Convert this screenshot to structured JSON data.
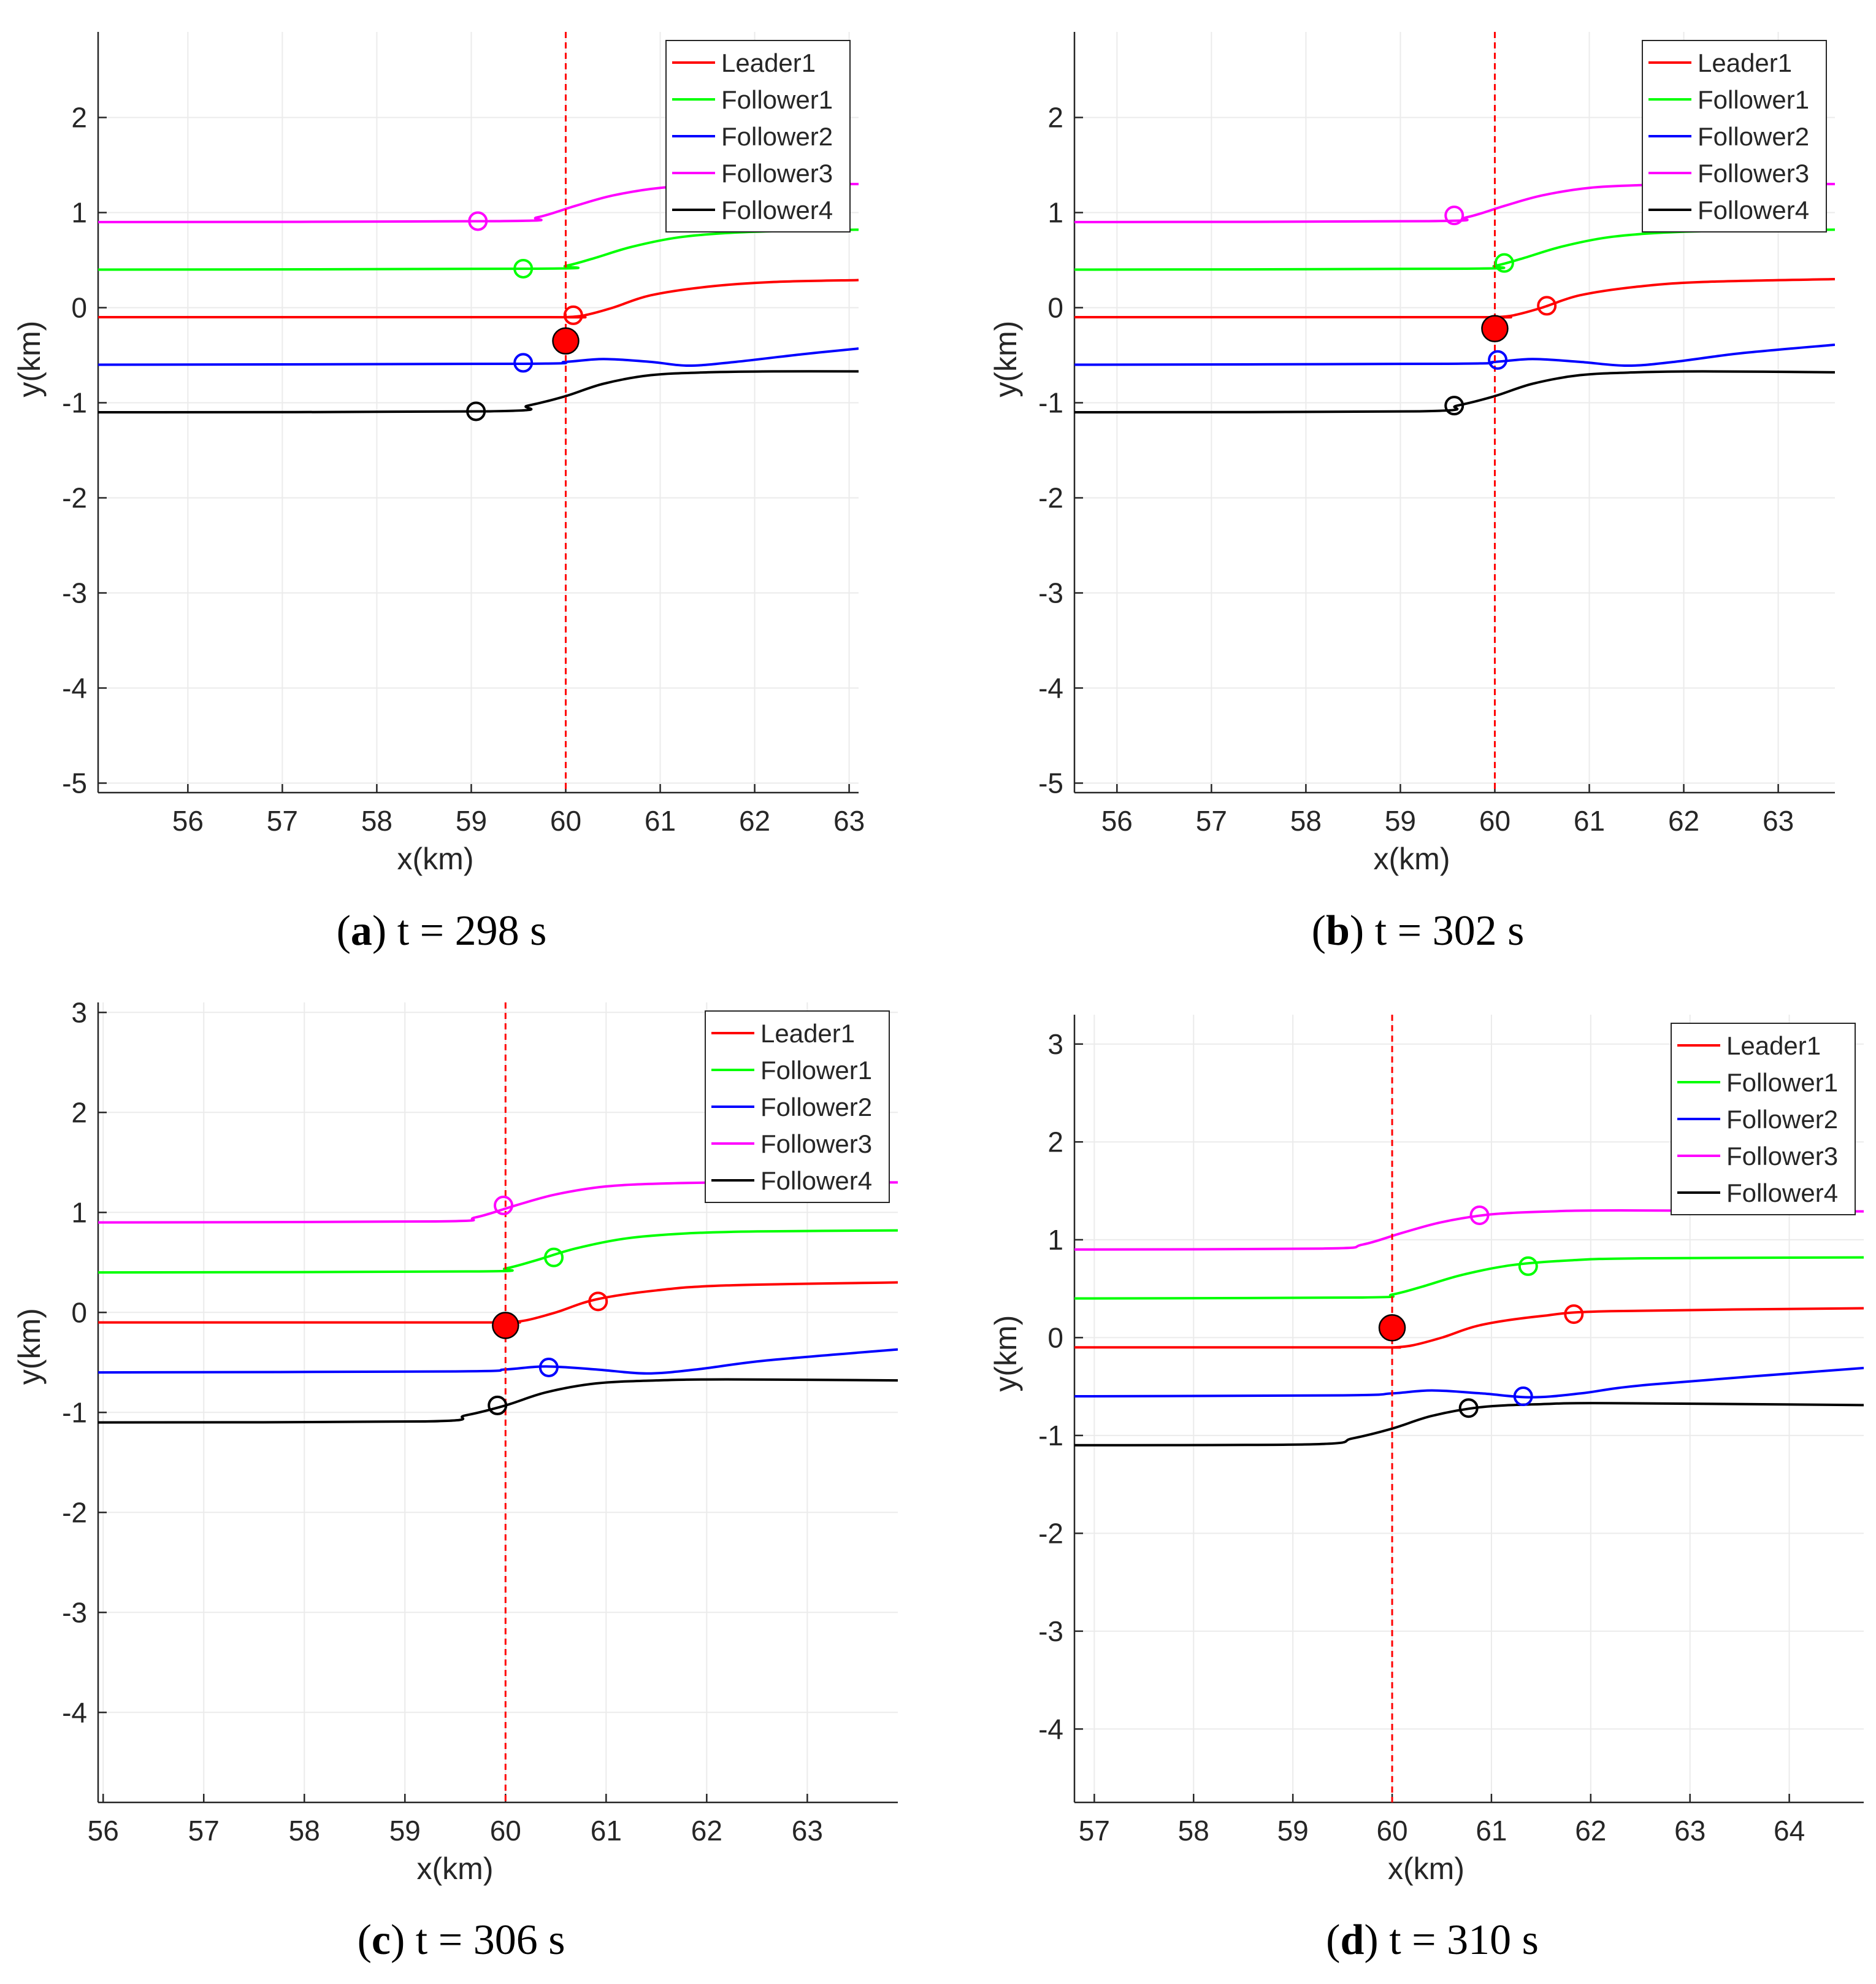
{
  "figure": {
    "legend_entries": [
      "Leader1",
      "Follower1",
      "Follower2",
      "Follower3",
      "Follower4"
    ],
    "series_colors": {
      "Leader1": "#ff0000",
      "Follower1": "#00ff00",
      "Follower2": "#0000ff",
      "Follower3": "#ff00ff",
      "Follower4": "#000000"
    },
    "reference_line": {
      "x": 60,
      "color": "#ff0000"
    }
  },
  "chart_data": [
    {
      "type": "line",
      "panel": "a",
      "caption_label": "a",
      "caption_text": " t = 298 s",
      "xlabel": "x(km)",
      "ylabel": "y(km)",
      "xlim": [
        55.05,
        63.1
      ],
      "ylim": [
        -5.1,
        2.9
      ],
      "xticks": [
        56,
        57,
        58,
        59,
        60,
        61,
        62,
        63
      ],
      "yticks": [
        -5,
        -4,
        -3,
        -2,
        -1,
        0,
        1,
        2
      ],
      "reference_x": 60,
      "series": [
        {
          "name": "Leader1",
          "color": "#ff0000",
          "x": [
            55.05,
            59.8,
            60.0,
            60.2,
            60.5,
            60.9,
            61.5,
            62.2,
            63.1
          ],
          "y": [
            -0.1,
            -0.1,
            -0.1,
            -0.08,
            0.0,
            0.13,
            0.22,
            0.27,
            0.29
          ],
          "marker": {
            "x": 60.08,
            "y": -0.08
          }
        },
        {
          "name": "Follower1",
          "color": "#00ff00",
          "x": [
            55.05,
            59.7,
            60.0,
            60.3,
            60.7,
            61.2,
            61.8,
            62.5,
            63.1
          ],
          "y": [
            0.4,
            0.41,
            0.44,
            0.52,
            0.64,
            0.74,
            0.79,
            0.81,
            0.82
          ],
          "marker": {
            "x": 59.55,
            "y": 0.41
          }
        },
        {
          "name": "Follower2",
          "color": "#0000ff",
          "x": [
            55.05,
            59.5,
            60.0,
            60.4,
            60.9,
            61.3,
            61.8,
            62.5,
            63.1
          ],
          "y": [
            -0.6,
            -0.59,
            -0.57,
            -0.54,
            -0.57,
            -0.61,
            -0.57,
            -0.49,
            -0.43
          ],
          "marker": {
            "x": 59.55,
            "y": -0.58
          }
        },
        {
          "name": "Follower3",
          "color": "#ff00ff",
          "x": [
            55.05,
            59.3,
            59.7,
            60.1,
            60.5,
            61.0,
            61.6,
            62.3,
            63.1
          ],
          "y": [
            0.9,
            0.91,
            0.95,
            1.07,
            1.18,
            1.26,
            1.29,
            1.3,
            1.3
          ],
          "marker": {
            "x": 59.07,
            "y": 0.91
          }
        },
        {
          "name": "Follower4",
          "color": "#000000",
          "x": [
            55.05,
            59.2,
            59.6,
            60.0,
            60.4,
            60.9,
            61.5,
            62.2,
            63.1
          ],
          "y": [
            -1.1,
            -1.09,
            -1.03,
            -0.93,
            -0.8,
            -0.71,
            -0.68,
            -0.67,
            -0.67
          ],
          "marker": {
            "x": 59.05,
            "y": -1.09
          }
        }
      ],
      "reference_marker": {
        "x": 60.0,
        "y": -0.35
      }
    },
    {
      "type": "line",
      "panel": "b",
      "caption_label": "b",
      "caption_text": " t = 302 s",
      "xlabel": "x(km)",
      "ylabel": "y(km)",
      "xlim": [
        55.55,
        63.6
      ],
      "ylim": [
        -5.1,
        2.9
      ],
      "xticks": [
        56,
        57,
        58,
        59,
        60,
        61,
        62,
        63
      ],
      "yticks": [
        -5,
        -4,
        -3,
        -2,
        -1,
        0,
        1,
        2
      ],
      "reference_x": 60,
      "series": [
        {
          "name": "Leader1",
          "color": "#ff0000",
          "x": [
            55.55,
            59.8,
            60.0,
            60.2,
            60.5,
            60.9,
            61.5,
            62.2,
            63.6
          ],
          "y": [
            -0.1,
            -0.1,
            -0.1,
            -0.08,
            0.0,
            0.13,
            0.22,
            0.27,
            0.3
          ],
          "marker": {
            "x": 60.55,
            "y": 0.02
          }
        },
        {
          "name": "Follower1",
          "color": "#00ff00",
          "x": [
            55.55,
            59.7,
            60.0,
            60.3,
            60.7,
            61.2,
            61.8,
            62.5,
            63.6
          ],
          "y": [
            0.4,
            0.41,
            0.44,
            0.52,
            0.64,
            0.74,
            0.79,
            0.81,
            0.82
          ],
          "marker": {
            "x": 60.1,
            "y": 0.47
          }
        },
        {
          "name": "Follower2",
          "color": "#0000ff",
          "x": [
            55.55,
            59.5,
            60.0,
            60.4,
            60.9,
            61.4,
            61.9,
            62.6,
            63.6
          ],
          "y": [
            -0.6,
            -0.59,
            -0.57,
            -0.54,
            -0.57,
            -0.61,
            -0.57,
            -0.48,
            -0.39
          ],
          "marker": {
            "x": 60.03,
            "y": -0.55
          }
        },
        {
          "name": "Follower3",
          "color": "#ff00ff",
          "x": [
            55.55,
            59.3,
            59.7,
            60.1,
            60.5,
            61.0,
            61.6,
            62.3,
            63.6
          ],
          "y": [
            0.9,
            0.91,
            0.95,
            1.07,
            1.18,
            1.26,
            1.29,
            1.3,
            1.3
          ],
          "marker": {
            "x": 59.57,
            "y": 0.97
          }
        },
        {
          "name": "Follower4",
          "color": "#000000",
          "x": [
            55.55,
            59.2,
            59.6,
            60.0,
            60.4,
            60.9,
            61.5,
            62.2,
            63.6
          ],
          "y": [
            -1.1,
            -1.09,
            -1.03,
            -0.93,
            -0.8,
            -0.71,
            -0.68,
            -0.67,
            -0.68
          ],
          "marker": {
            "x": 59.57,
            "y": -1.03
          }
        }
      ],
      "reference_marker": {
        "x": 60.0,
        "y": -0.22
      }
    },
    {
      "type": "line",
      "panel": "c",
      "caption_label": "c",
      "caption_text": " t = 306 s",
      "xlabel": "x(km)",
      "ylabel": "y(km)",
      "xlim": [
        55.95,
        63.9
      ],
      "ylim": [
        -4.9,
        3.1
      ],
      "xticks": [
        56,
        57,
        58,
        59,
        60,
        61,
        62,
        63
      ],
      "yticks": [
        -4,
        -3,
        -2,
        -1,
        0,
        1,
        2,
        3
      ],
      "reference_x": 60,
      "series": [
        {
          "name": "Leader1",
          "color": "#ff0000",
          "x": [
            55.95,
            59.8,
            60.0,
            60.2,
            60.5,
            60.9,
            61.5,
            62.2,
            63.9
          ],
          "y": [
            -0.1,
            -0.1,
            -0.1,
            -0.08,
            0.0,
            0.13,
            0.22,
            0.27,
            0.3
          ],
          "marker": {
            "x": 60.92,
            "y": 0.11
          }
        },
        {
          "name": "Follower1",
          "color": "#00ff00",
          "x": [
            55.95,
            59.7,
            60.0,
            60.3,
            60.7,
            61.2,
            61.8,
            62.5,
            63.9
          ],
          "y": [
            0.4,
            0.41,
            0.44,
            0.52,
            0.64,
            0.74,
            0.79,
            0.81,
            0.82
          ],
          "marker": {
            "x": 60.48,
            "y": 0.55
          }
        },
        {
          "name": "Follower2",
          "color": "#0000ff",
          "x": [
            55.95,
            59.5,
            60.0,
            60.4,
            60.9,
            61.4,
            61.9,
            62.6,
            63.9
          ],
          "y": [
            -0.6,
            -0.59,
            -0.57,
            -0.54,
            -0.57,
            -0.61,
            -0.57,
            -0.48,
            -0.37
          ],
          "marker": {
            "x": 60.43,
            "y": -0.55
          }
        },
        {
          "name": "Follower3",
          "color": "#ff00ff",
          "x": [
            55.95,
            59.3,
            59.7,
            60.1,
            60.5,
            61.0,
            61.6,
            62.3,
            63.9
          ],
          "y": [
            0.9,
            0.91,
            0.95,
            1.07,
            1.18,
            1.26,
            1.29,
            1.3,
            1.3
          ],
          "marker": {
            "x": 59.98,
            "y": 1.07
          }
        },
        {
          "name": "Follower4",
          "color": "#000000",
          "x": [
            55.95,
            59.2,
            59.6,
            60.0,
            60.4,
            60.9,
            61.5,
            62.2,
            63.9
          ],
          "y": [
            -1.1,
            -1.09,
            -1.03,
            -0.93,
            -0.8,
            -0.71,
            -0.68,
            -0.67,
            -0.68
          ],
          "marker": {
            "x": 59.92,
            "y": -0.93
          }
        }
      ],
      "reference_marker": {
        "x": 60.0,
        "y": -0.13
      }
    },
    {
      "type": "line",
      "panel": "d",
      "caption_label": "d",
      "caption_text": " t = 310 s",
      "xlabel": "x(km)",
      "ylabel": "y(km)",
      "xlim": [
        56.8,
        64.75
      ],
      "ylim": [
        -4.75,
        3.3
      ],
      "xticks": [
        57,
        58,
        59,
        60,
        61,
        62,
        63,
        64
      ],
      "yticks": [
        -4,
        -3,
        -2,
        -1,
        0,
        1,
        2,
        3
      ],
      "reference_x": 60,
      "series": [
        {
          "name": "Leader1",
          "color": "#ff0000",
          "x": [
            56.8,
            59.8,
            60.0,
            60.2,
            60.5,
            60.9,
            61.5,
            62.2,
            64.75
          ],
          "y": [
            -0.1,
            -0.1,
            -0.1,
            -0.08,
            0.0,
            0.13,
            0.22,
            0.27,
            0.3
          ],
          "marker": {
            "x": 61.83,
            "y": 0.24
          }
        },
        {
          "name": "Follower1",
          "color": "#00ff00",
          "x": [
            56.8,
            59.7,
            60.0,
            60.3,
            60.7,
            61.2,
            61.8,
            62.5,
            64.75
          ],
          "y": [
            0.4,
            0.41,
            0.44,
            0.52,
            0.64,
            0.74,
            0.79,
            0.81,
            0.82
          ],
          "marker": {
            "x": 61.37,
            "y": 0.73
          }
        },
        {
          "name": "Follower2",
          "color": "#0000ff",
          "x": [
            56.8,
            59.5,
            60.0,
            60.4,
            60.9,
            61.4,
            61.9,
            62.6,
            64.75
          ],
          "y": [
            -0.6,
            -0.59,
            -0.57,
            -0.54,
            -0.57,
            -0.61,
            -0.57,
            -0.48,
            -0.31
          ],
          "marker": {
            "x": 61.32,
            "y": -0.6
          }
        },
        {
          "name": "Follower3",
          "color": "#ff00ff",
          "x": [
            56.8,
            59.3,
            59.7,
            60.1,
            60.5,
            61.0,
            61.6,
            62.3,
            64.75
          ],
          "y": [
            0.9,
            0.91,
            0.95,
            1.07,
            1.18,
            1.26,
            1.29,
            1.3,
            1.29
          ],
          "marker": {
            "x": 60.88,
            "y": 1.25
          }
        },
        {
          "name": "Follower4",
          "color": "#000000",
          "x": [
            56.8,
            59.2,
            59.6,
            60.0,
            60.4,
            60.9,
            61.5,
            62.2,
            64.75
          ],
          "y": [
            -1.1,
            -1.09,
            -1.03,
            -0.93,
            -0.8,
            -0.71,
            -0.68,
            -0.67,
            -0.69
          ],
          "marker": {
            "x": 60.77,
            "y": -0.72
          }
        }
      ],
      "reference_marker": {
        "x": 60.0,
        "y": 0.1
      }
    }
  ]
}
